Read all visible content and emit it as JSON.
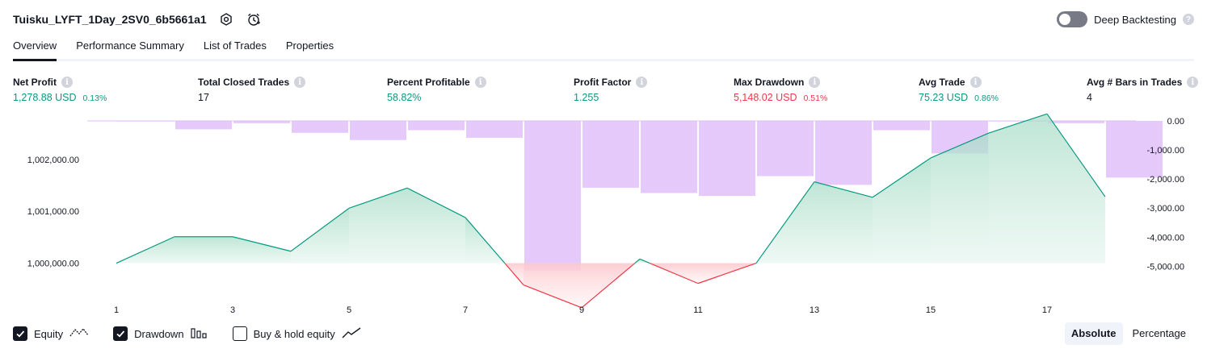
{
  "header": {
    "strategy_name": "Tuisku_LYFT_1Day_2SV0_6b5661a1",
    "deep_backtesting_label": "Deep Backtesting"
  },
  "tabs": [
    {
      "label": "Overview",
      "active": true
    },
    {
      "label": "Performance Summary",
      "active": false
    },
    {
      "label": "List of Trades",
      "active": false
    },
    {
      "label": "Properties",
      "active": false
    }
  ],
  "metrics": {
    "net_profit": {
      "label": "Net Profit",
      "value": "1,278.88 USD",
      "pct": "0.13%"
    },
    "total_closed_trades": {
      "label": "Total Closed Trades",
      "value": "17"
    },
    "percent_profitable": {
      "label": "Percent Profitable",
      "value": "58.82%"
    },
    "profit_factor": {
      "label": "Profit Factor",
      "value": "1.255"
    },
    "max_drawdown": {
      "label": "Max Drawdown",
      "value": "5,148.02 USD",
      "pct": "0.51%"
    },
    "avg_trade": {
      "label": "Avg Trade",
      "value": "75.23 USD",
      "pct": "0.86%"
    },
    "avg_bars": {
      "label": "Avg # Bars in Trades",
      "value": "4"
    }
  },
  "colors": {
    "positive": "#089981",
    "negative": "#f23645",
    "drawdown_bar": "#e1bff9",
    "equity_fill": "#d6efe6",
    "drawdown_fill": "#fcd7da"
  },
  "chart_data": {
    "type": "area",
    "x_ticks": [
      1,
      3,
      5,
      7,
      9,
      11,
      13,
      15,
      17
    ],
    "left_axis_ticks": [
      "1,002,000.00",
      "1,001,000.00",
      "1,000,000.00"
    ],
    "right_axis_ticks": [
      "0.00",
      "-1,000.00",
      "-2,000.00",
      "-3,000.00",
      "-4,000.00",
      "-5,000.00"
    ],
    "left_ylim": [
      999200,
      1002900
    ],
    "right_ylim": [
      -5600,
      0
    ],
    "equity": {
      "name": "Equity",
      "x": [
        1,
        2,
        3,
        4,
        5,
        6,
        7,
        8,
        9,
        10,
        11,
        12,
        13,
        14,
        15,
        16,
        17,
        18
      ],
      "values": [
        1000000,
        1000510,
        1000510,
        1000230,
        1001060,
        1001450,
        1000880,
        999580,
        999140,
        1000080,
        999610,
        1000000,
        1001570,
        1001270,
        1002030,
        1002510,
        1002880,
        1001280
      ]
    },
    "drawdown": {
      "name": "Drawdown",
      "x": [
        1,
        2,
        3,
        4,
        5,
        6,
        7,
        8,
        9,
        10,
        11,
        12,
        13,
        14,
        15,
        16,
        17,
        18
      ],
      "values": [
        -20,
        -290,
        -80,
        -410,
        -660,
        -320,
        -580,
        -5148,
        -2300,
        -2480,
        -2580,
        -1900,
        -2200,
        -320,
        -1120,
        -20,
        -80,
        -1950
      ]
    }
  },
  "legend": [
    {
      "label": "Equity",
      "checked": true,
      "icon": "equity-line-icon"
    },
    {
      "label": "Drawdown",
      "checked": true,
      "icon": "drawdown-bars-icon"
    },
    {
      "label": "Buy & hold equity",
      "checked": false,
      "icon": "buy-hold-line-icon"
    }
  ],
  "mode": {
    "absolute_label": "Absolute",
    "percentage_label": "Percentage",
    "selected": "Absolute"
  }
}
